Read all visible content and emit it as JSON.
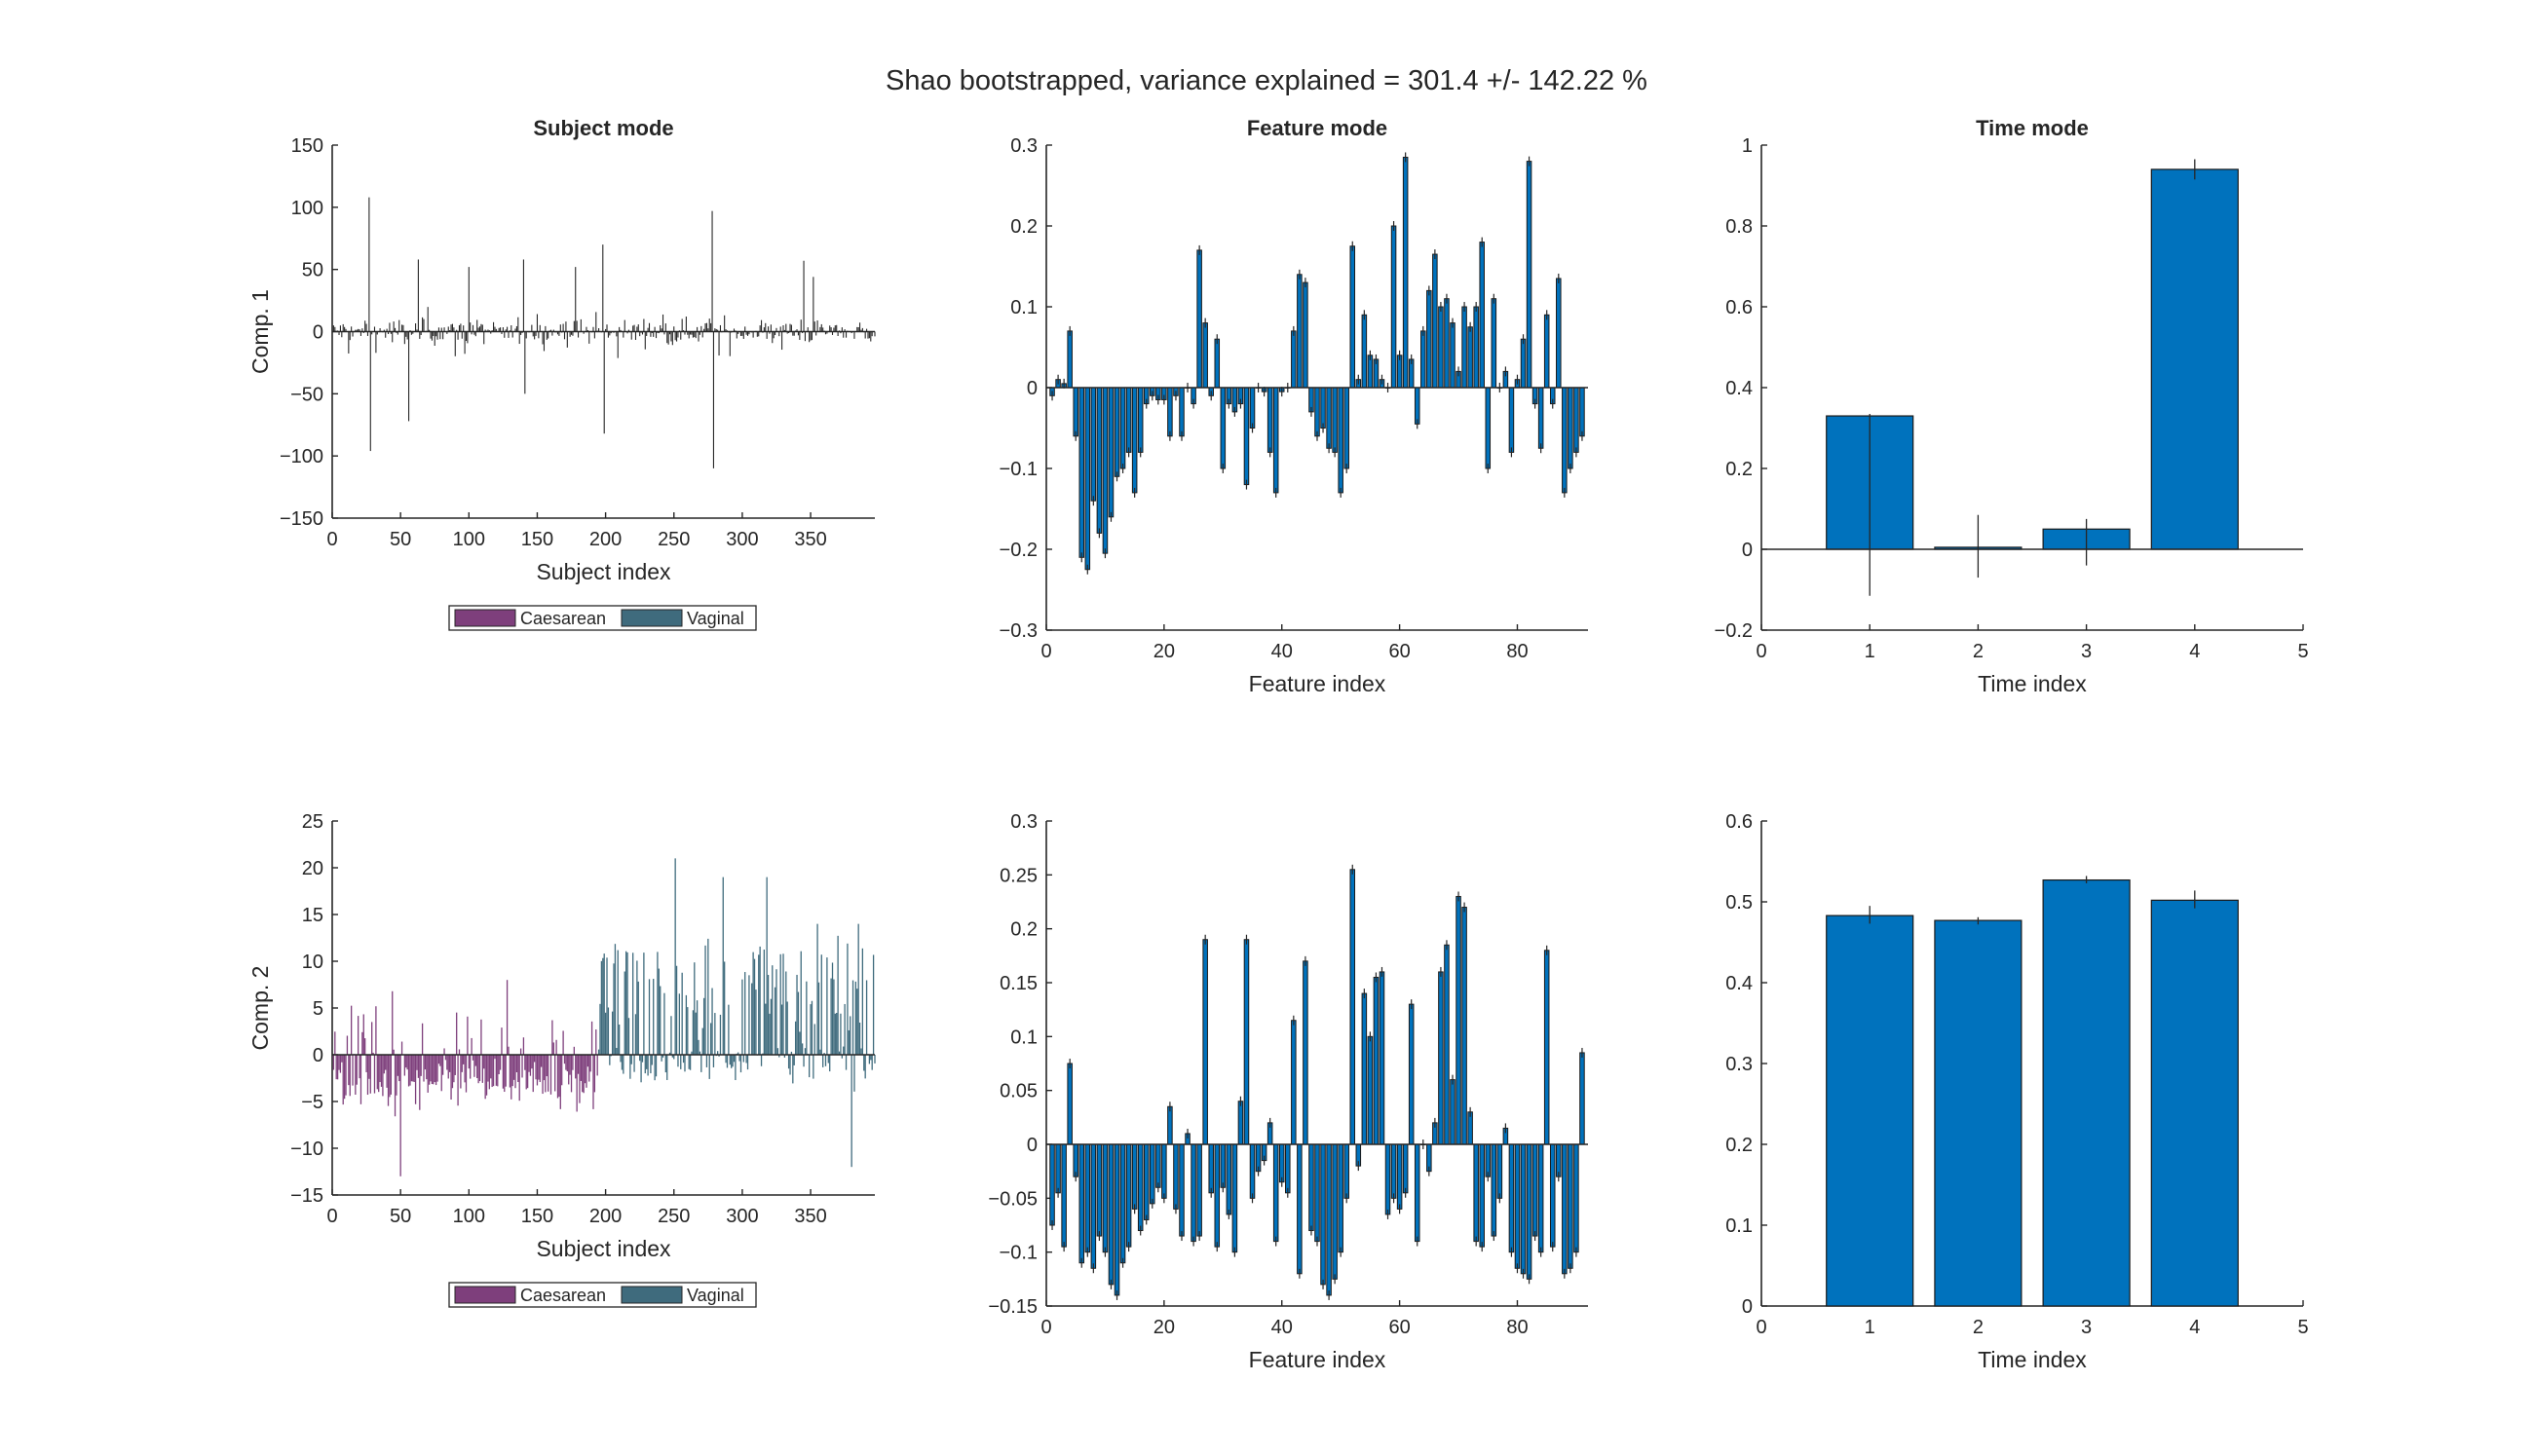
{
  "figure": {
    "suptitle": "Shao bootstrapped, variance explained = 301.4 +/- 142.22 %",
    "colors": {
      "caesarean": "#7E3F7C",
      "vaginal": "#3F6B7D",
      "bar_blue": "#0072BD",
      "axis": "#262626"
    }
  },
  "chart_data": [
    {
      "id": "subject1",
      "type": "bar",
      "title": "Subject mode",
      "xlabel": "Subject index",
      "ylabel": "Comp. 1",
      "xlim": [
        0,
        397
      ],
      "ylim": [
        -150,
        150
      ],
      "xticks": [
        0,
        50,
        100,
        150,
        200,
        250,
        300,
        350
      ],
      "yticks": [
        -150,
        -100,
        -50,
        0,
        50,
        100,
        150
      ],
      "n": 397,
      "split": 194,
      "highlights": [
        {
          "x": 27,
          "y": 108
        },
        {
          "x": 28,
          "y": -96
        },
        {
          "x": 56,
          "y": -72
        },
        {
          "x": 63,
          "y": 58
        },
        {
          "x": 100,
          "y": 52
        },
        {
          "x": 140,
          "y": 58
        },
        {
          "x": 141,
          "y": -50
        },
        {
          "x": 178,
          "y": 52
        },
        {
          "x": 198,
          "y": 70
        },
        {
          "x": 199,
          "y": -82
        },
        {
          "x": 278,
          "y": 97
        },
        {
          "x": 279,
          "y": -110
        },
        {
          "x": 345,
          "y": 57
        },
        {
          "x": 352,
          "y": 44
        }
      ],
      "legend": [
        "Caesarean",
        "Vaginal"
      ]
    },
    {
      "id": "feature1",
      "type": "bar",
      "title": "Feature mode",
      "xlabel": "Feature index",
      "ylabel": "",
      "xlim": [
        0,
        92
      ],
      "ylim": [
        -0.3,
        0.3
      ],
      "xticks": [
        0,
        20,
        40,
        60,
        80
      ],
      "yticks": [
        -0.3,
        -0.2,
        -0.1,
        0,
        0.1,
        0.2,
        0.3
      ],
      "values": [
        -0.01,
        0.01,
        0.005,
        0.07,
        -0.06,
        -0.21,
        -0.225,
        -0.14,
        -0.18,
        -0.205,
        -0.16,
        -0.11,
        -0.1,
        -0.08,
        -0.13,
        -0.08,
        -0.02,
        -0.01,
        -0.015,
        -0.015,
        -0.06,
        -0.01,
        -0.06,
        0.0,
        -0.02,
        0.17,
        0.08,
        -0.01,
        0.06,
        -0.1,
        -0.02,
        -0.03,
        -0.02,
        -0.12,
        -0.05,
        0.0,
        -0.005,
        -0.08,
        -0.13,
        -0.005,
        0.0,
        0.07,
        0.14,
        0.13,
        -0.03,
        -0.06,
        -0.05,
        -0.075,
        -0.08,
        -0.13,
        -0.1,
        0.175,
        0.01,
        0.09,
        0.04,
        0.035,
        0.01,
        0.0,
        0.2,
        0.04,
        0.285,
        0.035,
        -0.045,
        0.07,
        0.12,
        0.165,
        0.1,
        0.11,
        0.08,
        0.02,
        0.1,
        0.075,
        0.1,
        0.18,
        -0.1,
        0.11,
        0.0,
        0.02,
        -0.08,
        0.01,
        0.06,
        0.28,
        -0.02,
        -0.075,
        0.09,
        -0.02,
        0.135,
        -0.13,
        -0.1,
        -0.08,
        -0.06
      ]
    },
    {
      "id": "time1",
      "type": "bar",
      "title": "Time mode",
      "xlabel": "Time index",
      "ylabel": "",
      "xlim": [
        0,
        5
      ],
      "ylim": [
        -0.2,
        1
      ],
      "xticks": [
        0,
        1,
        2,
        3,
        4,
        5
      ],
      "yticks": [
        -0.2,
        0,
        0.2,
        0.4,
        0.6,
        0.8,
        1
      ],
      "categories": [
        1,
        2,
        3,
        4
      ],
      "values": [
        0.33,
        0.005,
        0.05,
        0.94
      ],
      "err_low": [
        -0.115,
        -0.07,
        -0.04,
        0.915
      ],
      "err_high": [
        0.335,
        0.085,
        0.075,
        0.965
      ]
    },
    {
      "id": "subject2",
      "type": "bar",
      "title": "",
      "xlabel": "Subject index",
      "ylabel": "Comp. 2",
      "xlim": [
        0,
        397
      ],
      "ylim": [
        -15,
        25
      ],
      "xticks": [
        0,
        50,
        100,
        150,
        200,
        250,
        300,
        350
      ],
      "yticks": [
        -15,
        -10,
        -5,
        0,
        5,
        10,
        15,
        20,
        25
      ],
      "n": 397,
      "split": 194,
      "highlights": [
        {
          "x": 50,
          "y": -13
        },
        {
          "x": 128,
          "y": 8
        },
        {
          "x": 251,
          "y": 21
        },
        {
          "x": 286,
          "y": 19
        },
        {
          "x": 318,
          "y": 19
        },
        {
          "x": 355,
          "y": 14
        },
        {
          "x": 380,
          "y": -12
        },
        {
          "x": 385,
          "y": 14
        }
      ],
      "legend": [
        "Caesarean",
        "Vaginal"
      ]
    },
    {
      "id": "feature2",
      "type": "bar",
      "title": "",
      "xlabel": "Feature index",
      "ylabel": "",
      "xlim": [
        0,
        92
      ],
      "ylim": [
        -0.15,
        0.3
      ],
      "xticks": [
        0,
        20,
        40,
        60,
        80
      ],
      "yticks": [
        -0.15,
        -0.1,
        -0.05,
        0,
        0.05,
        0.1,
        0.15,
        0.2,
        0.25,
        0.3
      ],
      "values": [
        -0.075,
        -0.045,
        -0.095,
        0.075,
        -0.03,
        -0.11,
        -0.1,
        -0.115,
        -0.085,
        -0.1,
        -0.13,
        -0.14,
        -0.11,
        -0.095,
        -0.06,
        -0.08,
        -0.07,
        -0.055,
        -0.04,
        -0.05,
        0.035,
        -0.06,
        -0.085,
        0.01,
        -0.09,
        -0.085,
        0.19,
        -0.045,
        -0.095,
        -0.04,
        -0.065,
        -0.1,
        0.04,
        0.19,
        -0.05,
        -0.025,
        -0.015,
        0.02,
        -0.09,
        -0.035,
        -0.045,
        0.115,
        -0.12,
        0.17,
        -0.08,
        -0.09,
        -0.13,
        -0.14,
        -0.125,
        -0.1,
        -0.05,
        0.255,
        -0.02,
        0.14,
        0.1,
        0.155,
        0.16,
        -0.065,
        -0.05,
        -0.06,
        -0.045,
        0.13,
        -0.09,
        0.0,
        -0.025,
        0.02,
        0.16,
        0.185,
        0.06,
        0.23,
        0.22,
        0.03,
        -0.09,
        -0.095,
        -0.03,
        -0.085,
        -0.05,
        0.015,
        -0.1,
        -0.115,
        -0.12,
        -0.125,
        -0.085,
        -0.1,
        0.18,
        -0.095,
        -0.03,
        -0.12,
        -0.115,
        -0.1,
        0.085
      ]
    },
    {
      "id": "time2",
      "type": "bar",
      "title": "",
      "xlabel": "Time index",
      "ylabel": "",
      "xlim": [
        0,
        5
      ],
      "ylim": [
        0,
        0.6
      ],
      "xticks": [
        0,
        1,
        2,
        3,
        4,
        5
      ],
      "yticks": [
        0,
        0.1,
        0.2,
        0.3,
        0.4,
        0.5,
        0.6
      ],
      "categories": [
        1,
        2,
        3,
        4
      ],
      "values": [
        0.483,
        0.477,
        0.527,
        0.502
      ],
      "err_low": [
        0.473,
        0.472,
        0.523,
        0.492
      ],
      "err_high": [
        0.495,
        0.481,
        0.532,
        0.514
      ]
    }
  ]
}
